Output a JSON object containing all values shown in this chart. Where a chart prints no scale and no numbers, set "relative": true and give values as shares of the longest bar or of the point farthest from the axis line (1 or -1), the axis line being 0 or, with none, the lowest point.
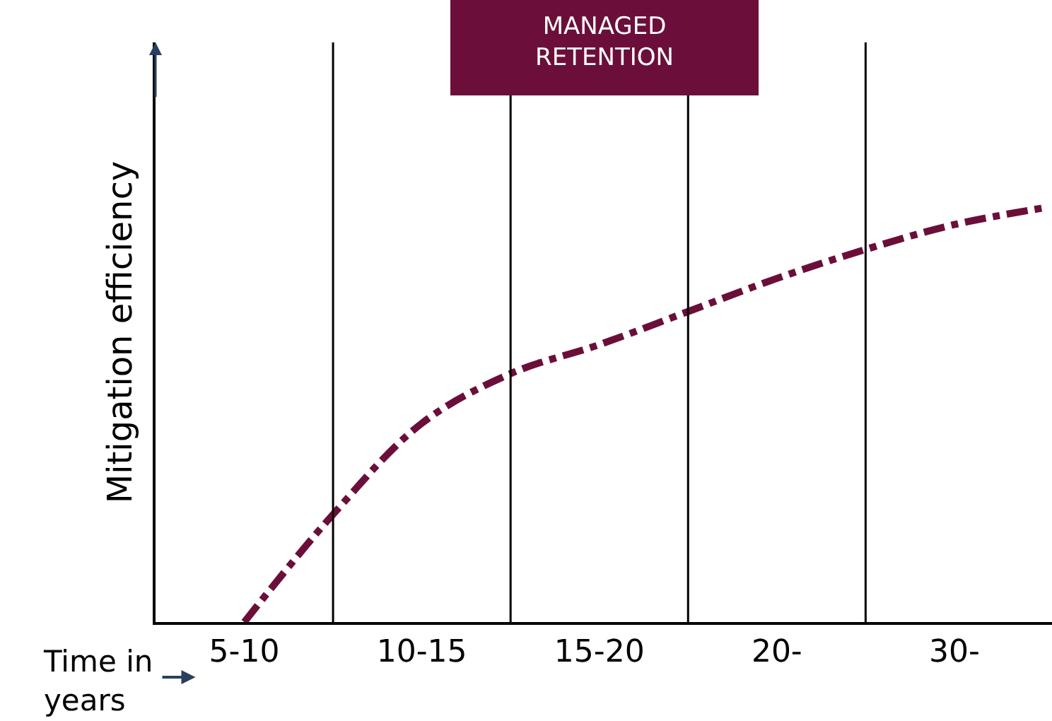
{
  "chart_data": {
    "type": "line",
    "relative": true,
    "ylabel": "Mitigation efficiency",
    "xlabel": "Time in years",
    "annotations": [
      "MANAGED RETENTION"
    ],
    "categories": [
      "5-10",
      null,
      "10-15",
      null,
      "15-20",
      null,
      "20-",
      null,
      "30-",
      null
    ],
    "series": [
      {
        "color": "#6b0f3a",
        "values": [
          0.0,
          0.26,
          0.48,
          0.6,
          0.67,
          0.75,
          0.83,
          0.9,
          0.96,
          1.0
        ]
      }
    ],
    "line_style": "dashdot",
    "marker": "none",
    "grid": "x",
    "legend": false
  }
}
